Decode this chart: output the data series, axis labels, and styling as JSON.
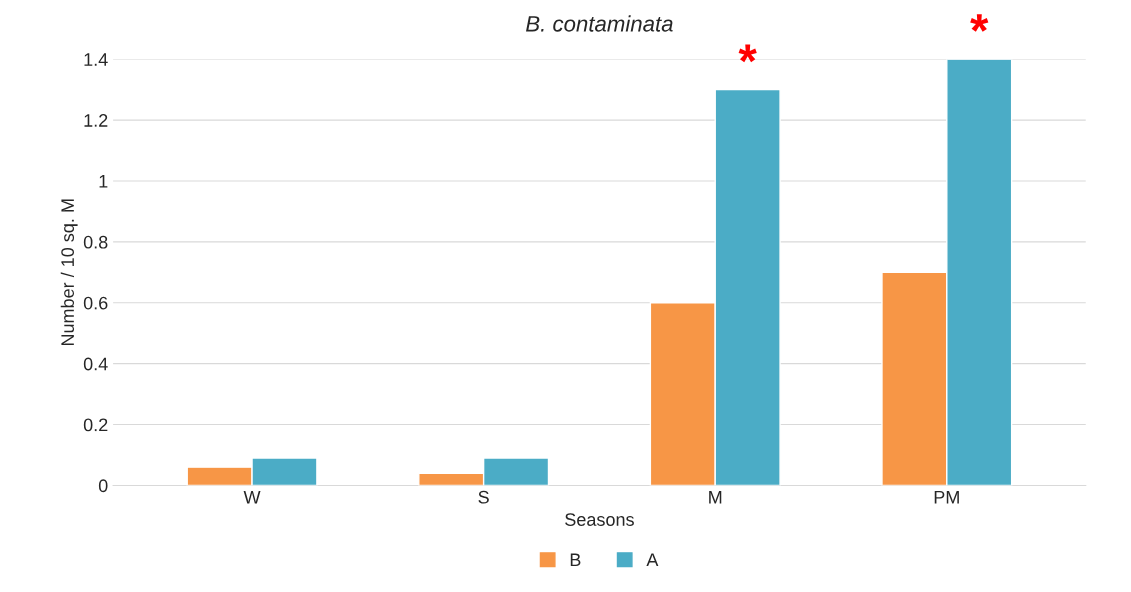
{
  "chart_data": {
    "type": "bar",
    "title": "B. contaminata",
    "xlabel": "Seasons",
    "ylabel": "Number / 10 sq. M",
    "categories": [
      "W",
      "S",
      "M",
      "PM"
    ],
    "series": [
      {
        "name": "B",
        "color": "#f79646",
        "values": [
          0.06,
          0.04,
          0.6,
          0.7
        ]
      },
      {
        "name": "A",
        "color": "#4bacc6",
        "values": [
          0.09,
          0.09,
          1.3,
          1.4
        ]
      }
    ],
    "ylim": [
      0,
      1.4
    ],
    "yticks": [
      0,
      0.2,
      0.4,
      0.6,
      0.8,
      1,
      1.2,
      1.4
    ],
    "grid": "y",
    "legend": "bottom",
    "annotations": [
      {
        "text": "*",
        "x": "M",
        "y": 1.3
      },
      {
        "text": "*",
        "x": "PM",
        "y": 1.4
      }
    ]
  }
}
